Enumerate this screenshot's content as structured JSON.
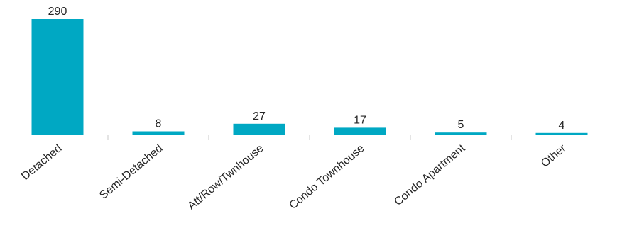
{
  "chart_data": {
    "type": "bar",
    "categories": [
      "Detached",
      "Semi-Detached",
      "Att/Row/Twnhouse",
      "Condo Townhouse",
      "Condo Apartment",
      "Other"
    ],
    "values": [
      290,
      8,
      27,
      17,
      5,
      4
    ],
    "title": "",
    "xlabel": "",
    "ylabel": "",
    "ylim": [
      0,
      290
    ],
    "grid": false,
    "legend": "none",
    "data_labels": true,
    "x_tick_rotation": -40,
    "colors": {
      "bar": "#00a8c3",
      "axis": "#c8c8c8",
      "text": "#262626"
    }
  }
}
